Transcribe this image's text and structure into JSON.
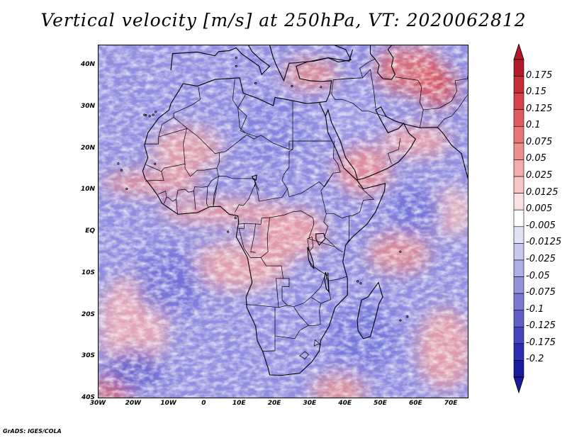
{
  "title": "Vertical velocity [m/s] at 250hPa, VT: 2020062812",
  "footer": "GrADS: IGES/COLA",
  "map": {
    "variable": "vertical-velocity",
    "region": "Africa",
    "lat_range": [
      -40,
      45
    ],
    "lon_range": [
      -30,
      75
    ]
  },
  "lat_labels": [
    "40N",
    "30N",
    "20N",
    "10N",
    "EQ",
    "10S",
    "20S",
    "30S",
    "40S"
  ],
  "lon_labels": [
    "30W",
    "20W",
    "10W",
    "0",
    "10E",
    "20E",
    "30E",
    "40E",
    "50E",
    "60E",
    "70E"
  ],
  "colorbar": {
    "labels": [
      "0.175",
      "0.15",
      "0.125",
      "0.1",
      "0.075",
      "0.05",
      "0.025",
      "0.0125",
      "0.005",
      "-0.005",
      "-0.0125",
      "-0.025",
      "-0.05",
      "-0.075",
      "-0.1",
      "-0.125",
      "-0.175",
      "-0.2"
    ],
    "colors": [
      "#b2182b",
      "#c62d36",
      "#d6414a",
      "#e05a5f",
      "#e87577",
      "#ee9090",
      "#f3abab",
      "#f7c6c6",
      "#fbe2e2",
      "#ffffff",
      "#e2e2f7",
      "#c8c8ee",
      "#adaee5",
      "#9393dc",
      "#7a7ad2",
      "#6060c8",
      "#4545bd",
      "#2c2cb2",
      "#1a1a9c"
    ]
  }
}
